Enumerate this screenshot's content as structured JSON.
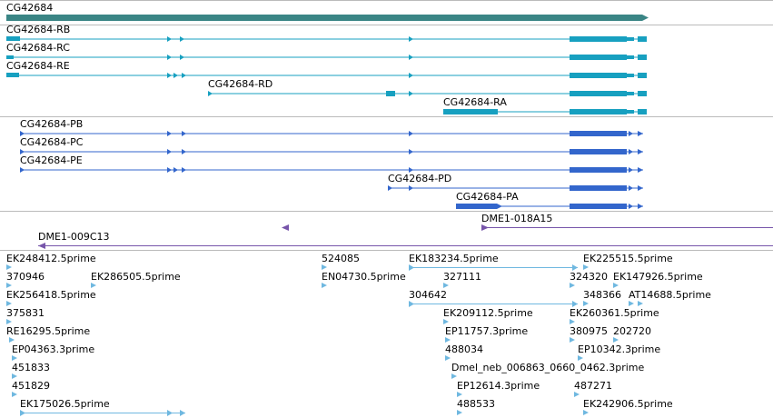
{
  "gene": {
    "name": "CG42684"
  },
  "transcripts": [
    {
      "name": "CG42684-RB"
    },
    {
      "name": "CG42684-RC"
    },
    {
      "name": "CG42684-RE"
    },
    {
      "name": "CG42684-RD"
    },
    {
      "name": "CG42684-RA"
    }
  ],
  "proteins": [
    {
      "name": "CG42684-PB"
    },
    {
      "name": "CG42684-PC"
    },
    {
      "name": "CG42684-PE"
    },
    {
      "name": "CG42684-PD"
    },
    {
      "name": "CG42684-PA"
    }
  ],
  "clones": [
    {
      "name": "DME1-018A15"
    },
    {
      "name": "DME1-009C13"
    }
  ],
  "ests": [
    {
      "name": "EK248412.5prime"
    },
    {
      "name": "370946"
    },
    {
      "name": "EK286505.5prime"
    },
    {
      "name": "EK256418.5prime"
    },
    {
      "name": "375831"
    },
    {
      "name": "RE16295.5prime"
    },
    {
      "name": "EP04363.3prime"
    },
    {
      "name": "451833"
    },
    {
      "name": "451829"
    },
    {
      "name": "EK175026.5prime"
    },
    {
      "name": "524085"
    },
    {
      "name": "EN04730.5prime"
    },
    {
      "name": "EK183234.5prime"
    },
    {
      "name": "327111"
    },
    {
      "name": "304642"
    },
    {
      "name": "EK209112.5prime"
    },
    {
      "name": "EP11757.3prime"
    },
    {
      "name": "488034"
    },
    {
      "name": "Dmel_neb_006863_0660_0462.3prime"
    },
    {
      "name": "EP12614.3prime"
    },
    {
      "name": "488533"
    },
    {
      "name": "EK225515.5prime"
    },
    {
      "name": "324320"
    },
    {
      "name": "EK147926.5prime"
    },
    {
      "name": "348366"
    },
    {
      "name": "AT14688.5prime"
    },
    {
      "name": "EK260361.5prime"
    },
    {
      "name": "380975"
    },
    {
      "name": "202720"
    },
    {
      "name": "EP10342.3prime"
    },
    {
      "name": "487271"
    },
    {
      "name": "EK242906.5prime"
    }
  ],
  "colors": {
    "gene": "#3a8585",
    "transcript": "#17a0c0",
    "protein": "#3366cc",
    "clone": "#7755aa",
    "est": "#6fb8e0",
    "divider": "#bbbbbb"
  }
}
